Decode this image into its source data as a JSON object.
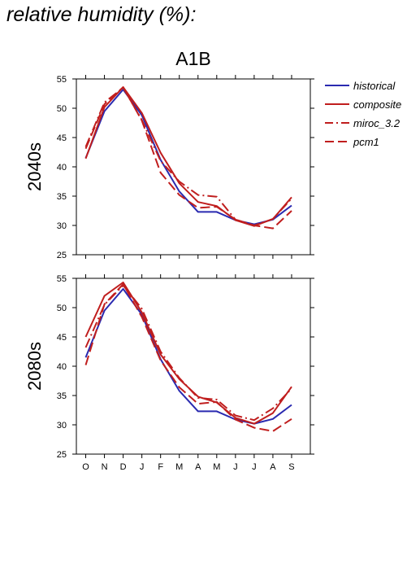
{
  "page": {
    "title": "relative humidity (%):",
    "colors": {
      "historical": "#2a2ab0",
      "projection": "#c01e1e",
      "axis": "#000000"
    }
  },
  "chart_data": [
    {
      "type": "line",
      "title": "A1B",
      "row_label": "2040s",
      "xlabel": "",
      "ylabel": "",
      "categories": [
        "O",
        "N",
        "D",
        "J",
        "F",
        "M",
        "A",
        "M",
        "J",
        "J",
        "A",
        "S"
      ],
      "ylim": [
        25,
        55
      ],
      "yticks": [
        25,
        30,
        35,
        40,
        45,
        50,
        55
      ],
      "grid": false,
      "legend": "right",
      "series": [
        {
          "name": "historical",
          "style": "solid",
          "color": "#2a2ab0",
          "values": [
            41.5,
            49.5,
            53.2,
            48.8,
            41.2,
            35.8,
            32.3,
            32.3,
            30.9,
            30.2,
            31.0,
            33.4
          ]
        },
        {
          "name": "composite",
          "style": "solid",
          "color": "#c01e1e",
          "values": [
            41.4,
            50.2,
            53.6,
            49.2,
            42.4,
            37.2,
            34.0,
            33.3,
            30.9,
            29.9,
            31.1,
            34.8
          ]
        },
        {
          "name": "miroc_3.2",
          "style": "dashdot",
          "color": "#c01e1e",
          "values": [
            43.4,
            51.0,
            53.5,
            48.0,
            41.0,
            37.5,
            35.2,
            34.9,
            31.0,
            30.0,
            31.1,
            34.6
          ]
        },
        {
          "name": "pcm1",
          "style": "dashed",
          "color": "#c01e1e",
          "values": [
            43.1,
            50.7,
            53.6,
            47.9,
            39.0,
            35.2,
            33.0,
            33.2,
            31.0,
            30.0,
            29.5,
            32.5
          ]
        }
      ]
    },
    {
      "type": "line",
      "title": "",
      "row_label": "2080s",
      "xlabel": "",
      "ylabel": "",
      "categories": [
        "O",
        "N",
        "D",
        "J",
        "F",
        "M",
        "A",
        "M",
        "J",
        "J",
        "A",
        "S"
      ],
      "ylim": [
        25,
        55
      ],
      "yticks": [
        25,
        30,
        35,
        40,
        45,
        50,
        55
      ],
      "grid": false,
      "legend": "none",
      "series": [
        {
          "name": "historical",
          "style": "solid",
          "color": "#2a2ab0",
          "values": [
            41.5,
            49.5,
            53.2,
            48.8,
            41.2,
            35.8,
            32.3,
            32.3,
            30.9,
            30.2,
            31.0,
            33.4
          ]
        },
        {
          "name": "composite",
          "style": "solid",
          "color": "#c01e1e",
          "values": [
            45.0,
            52.0,
            54.3,
            49.2,
            42.0,
            37.8,
            34.8,
            33.8,
            31.2,
            30.2,
            32.0,
            36.5
          ]
        },
        {
          "name": "miroc_3.2",
          "style": "dashdot",
          "color": "#c01e1e",
          "values": [
            43.2,
            50.5,
            53.8,
            49.8,
            42.5,
            38.0,
            34.6,
            34.3,
            31.6,
            30.8,
            32.8,
            36.2
          ]
        },
        {
          "name": "pcm1",
          "style": "dashed",
          "color": "#c01e1e",
          "values": [
            40.2,
            50.6,
            54.0,
            48.4,
            41.0,
            36.4,
            33.6,
            33.9,
            30.9,
            29.5,
            28.9,
            31.0
          ]
        }
      ]
    }
  ]
}
